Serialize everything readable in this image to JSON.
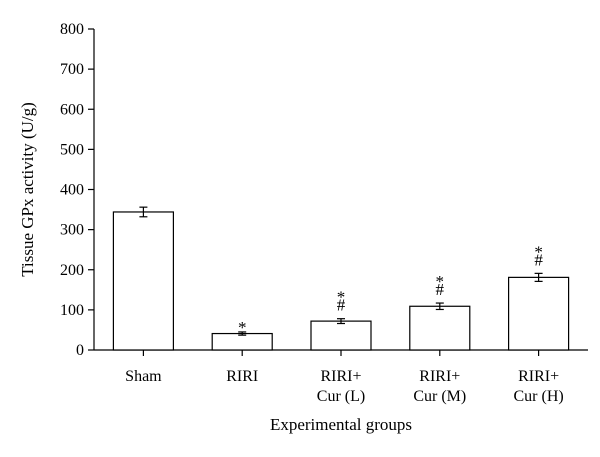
{
  "chart_data": {
    "type": "bar",
    "xlabel": "Experimental groups",
    "ylabel": "Tissue GPx activity (U/g)",
    "ylim": [
      0,
      800
    ],
    "yticks": [
      0,
      100,
      200,
      300,
      400,
      500,
      600,
      700,
      800
    ],
    "grid": false,
    "categories": [
      [
        "Sham"
      ],
      [
        "RIRI"
      ],
      [
        "RIRI+",
        "Cur (L)"
      ],
      [
        "RIRI+",
        "Cur (M)"
      ],
      [
        "RIRI+",
        "Cur (H)"
      ]
    ],
    "values": [
      344,
      41,
      72,
      109,
      181
    ],
    "errors": [
      12,
      4,
      6,
      8,
      10
    ],
    "significance": [
      [],
      [
        "*"
      ],
      [
        "*",
        "#"
      ],
      [
        "*",
        "#"
      ],
      [
        "*",
        "#"
      ]
    ]
  }
}
